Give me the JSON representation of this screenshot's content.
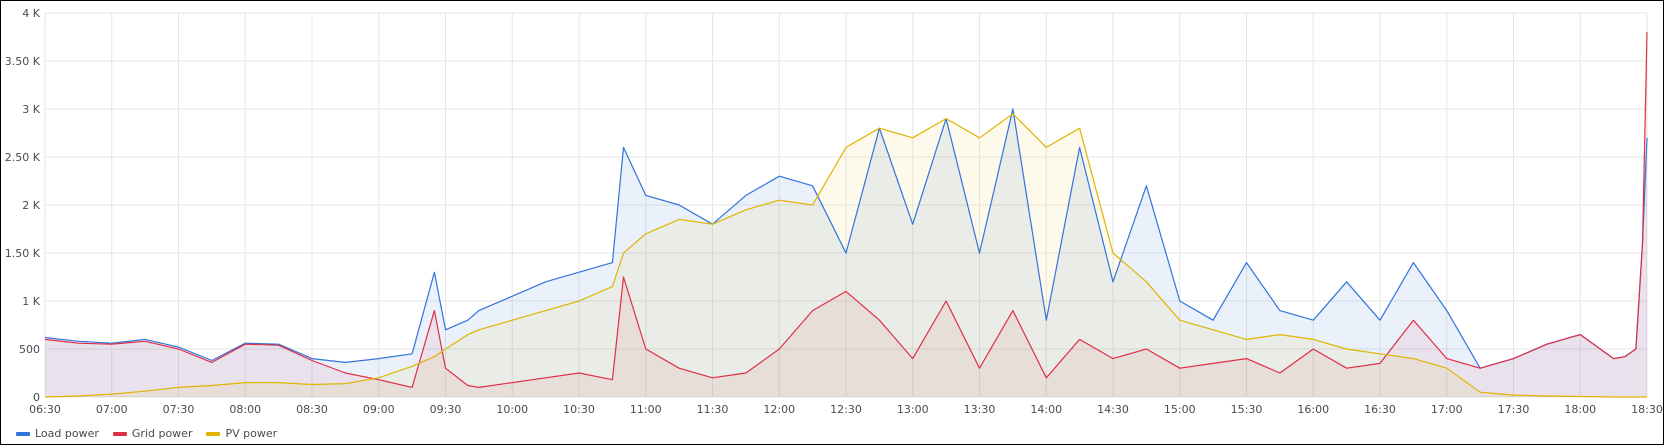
{
  "chart_data": {
    "type": "line",
    "title": "",
    "xlabel": "",
    "ylabel": "",
    "x_ticks": [
      "06:30",
      "07:00",
      "07:30",
      "08:00",
      "08:30",
      "09:00",
      "09:30",
      "10:00",
      "10:30",
      "11:00",
      "11:30",
      "12:00",
      "12:30",
      "13:00",
      "13:30",
      "14:00",
      "14:30",
      "15:00",
      "15:30",
      "16:00",
      "16:30",
      "17:00",
      "17:30",
      "18:00",
      "18:30"
    ],
    "y_ticks": [
      "0",
      "500",
      "1 K",
      "1.50 K",
      "2 K",
      "2.50 K",
      "3 K",
      "3.50 K",
      "4 K"
    ],
    "ylim": [
      0,
      4000
    ],
    "grid": true,
    "legend_position": "bottom-left",
    "x": [
      "06:30",
      "06:45",
      "07:00",
      "07:15",
      "07:30",
      "07:45",
      "08:00",
      "08:15",
      "08:30",
      "08:45",
      "09:00",
      "09:15",
      "09:25",
      "09:30",
      "09:40",
      "09:45",
      "10:00",
      "10:15",
      "10:30",
      "10:45",
      "10:50",
      "11:00",
      "11:15",
      "11:30",
      "11:45",
      "12:00",
      "12:15",
      "12:30",
      "12:45",
      "13:00",
      "13:15",
      "13:30",
      "13:45",
      "14:00",
      "14:15",
      "14:30",
      "14:45",
      "15:00",
      "15:15",
      "15:30",
      "15:45",
      "16:00",
      "16:15",
      "16:30",
      "16:45",
      "17:00",
      "17:15",
      "17:30",
      "17:45",
      "18:00",
      "18:15",
      "18:20",
      "18:25",
      "18:28",
      "18:30"
    ],
    "series": [
      {
        "name": "Load power",
        "color": "#3274d9",
        "values": [
          620,
          580,
          560,
          600,
          520,
          380,
          560,
          550,
          400,
          360,
          400,
          450,
          1300,
          700,
          800,
          900,
          1050,
          1200,
          1300,
          1400,
          2600,
          2100,
          2000,
          1800,
          2100,
          2300,
          2200,
          1500,
          2800,
          1800,
          2900,
          1500,
          3000,
          800,
          2600,
          1200,
          2200,
          1000,
          800,
          1400,
          900,
          800,
          1200,
          800,
          1400,
          900,
          300,
          400,
          550,
          650,
          400,
          420,
          500,
          1600,
          2700
        ]
      },
      {
        "name": "Grid power",
        "color": "#e02f44",
        "values": [
          600,
          560,
          550,
          580,
          500,
          360,
          550,
          540,
          380,
          250,
          180,
          100,
          900,
          300,
          120,
          100,
          150,
          200,
          250,
          180,
          1250,
          500,
          300,
          200,
          250,
          500,
          900,
          1100,
          800,
          400,
          1000,
          300,
          900,
          200,
          600,
          400,
          500,
          300,
          350,
          400,
          250,
          500,
          300,
          350,
          800,
          400,
          300,
          400,
          550,
          650,
          400,
          420,
          500,
          1600,
          3800
        ]
      },
      {
        "name": "PV power",
        "color": "#e0b400",
        "values": [
          0,
          10,
          30,
          60,
          100,
          120,
          150,
          150,
          130,
          140,
          200,
          320,
          420,
          500,
          650,
          700,
          800,
          900,
          1000,
          1150,
          1500,
          1700,
          1850,
          1800,
          1950,
          2050,
          2000,
          2600,
          2800,
          2700,
          2900,
          2700,
          2950,
          2600,
          2800,
          1500,
          1200,
          800,
          700,
          600,
          650,
          600,
          500,
          450,
          400,
          300,
          50,
          20,
          10,
          5,
          0,
          0,
          0,
          0,
          0
        ]
      }
    ]
  },
  "legend": {
    "load_label": "Load power",
    "grid_label": "Grid power",
    "pv_label": "PV power"
  }
}
